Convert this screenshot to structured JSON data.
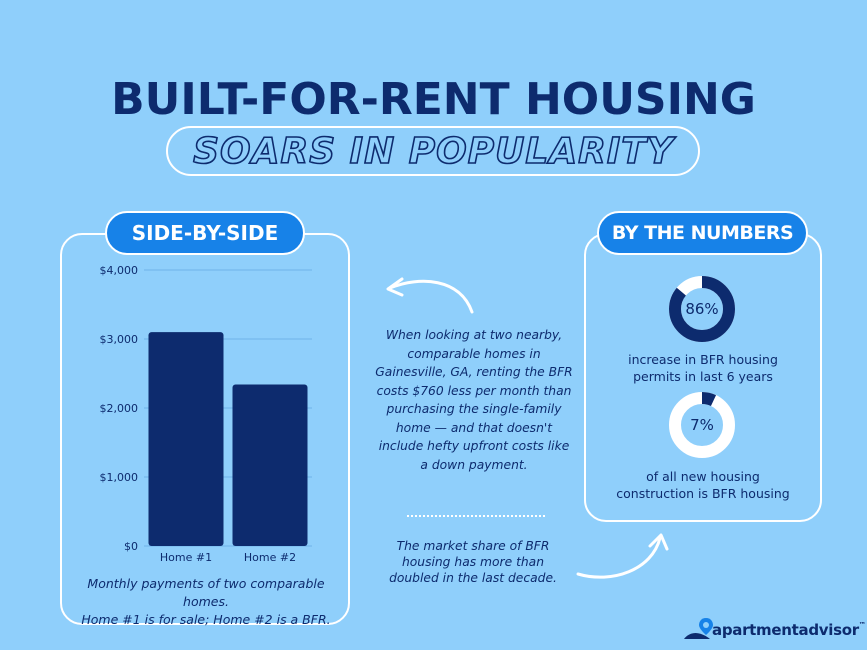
{
  "header": {
    "title": "BUILT-FOR-RENT HOUSING",
    "subtitle": "SOARS IN POPULARITY"
  },
  "side_by_side": {
    "tag": "SIDE-BY-SIDE",
    "caption_line1": "Monthly payments of two comparable homes.",
    "caption_line2": "Home #1 is for sale; Home #2 is a BFR."
  },
  "middle": {
    "paragraph": "When looking at two nearby, comparable homes in Gainesville, GA, renting the BFR costs $760 less per month than purchasing the single-family home — and that doesn't include hefty upfront costs like a down payment.",
    "market_share": "The market share of BFR housing has more than doubled in the last decade."
  },
  "numbers": {
    "tag": "BY THE NUMBERS",
    "stats": [
      {
        "value": 86,
        "label": "86%",
        "text_line1": "increase in BFR housing",
        "text_line2": "permits in last 6 years"
      },
      {
        "value": 7,
        "label": "7%",
        "text_line1": "of all new housing",
        "text_line2": "construction is BFR housing"
      }
    ]
  },
  "brand": {
    "name": "apartmentadvisor",
    "trademark": "™"
  },
  "colors": {
    "background": "#8fcffb",
    "navy": "#0d2b6e",
    "accent_blue": "#1782e8",
    "white": "#ffffff"
  },
  "chart_data": {
    "type": "bar",
    "categories": [
      "Home #1",
      "Home #2"
    ],
    "values": [
      3100,
      2340
    ],
    "ylim": [
      0,
      4000
    ],
    "yticks": [
      0,
      1000,
      2000,
      3000,
      4000
    ],
    "ytick_labels": [
      "$0",
      "$1,000",
      "$2,000",
      "$3,000",
      "$4,000"
    ],
    "grid": true
  }
}
